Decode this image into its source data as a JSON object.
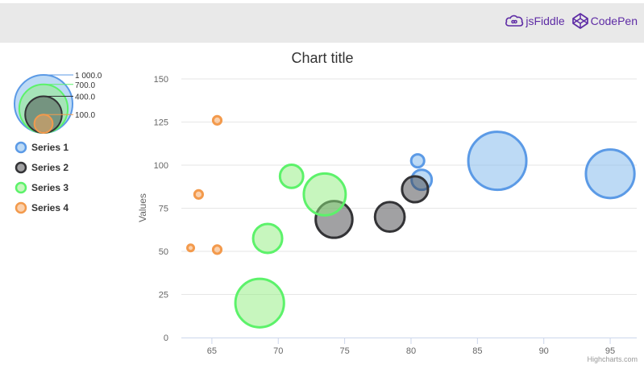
{
  "header": {
    "links": [
      {
        "label": "jsFiddle",
        "icon": "jsfiddle-cloud-icon"
      },
      {
        "label": "CodePen",
        "icon": "codepen-cube-icon"
      }
    ]
  },
  "chart_data": {
    "type": "bubble",
    "title": "Chart title",
    "ylabel": "Values",
    "xlabel": "",
    "credits": "Highcharts.com",
    "xlim": [
      62.7,
      97
    ],
    "ylim": [
      0,
      150
    ],
    "xticks": [
      "65",
      "70",
      "75",
      "80",
      "85",
      "90",
      "95"
    ],
    "xtick_values": [
      65,
      70,
      75,
      80,
      85,
      90,
      95
    ],
    "yticks": [
      "0",
      "25",
      "50",
      "75",
      "100",
      "125",
      "150"
    ],
    "ytick_values": [
      0,
      25,
      50,
      75,
      100,
      125,
      150
    ],
    "grid": true,
    "legend_position": "left",
    "bubble_legend": {
      "labels": [
        "1 000.0",
        "700.0",
        "400.0",
        "100.0"
      ],
      "values": [
        1000,
        700,
        400,
        100
      ]
    },
    "series": [
      {
        "name": "Series 1",
        "color": "#7cb5ec",
        "stroke": "#5b9ae6",
        "points": [
          {
            "x": 80.5,
            "y": 102.5,
            "z": 50
          },
          {
            "x": 80.8,
            "y": 91.5,
            "z": 120
          },
          {
            "x": 86.5,
            "y": 102.5,
            "z": 1000
          },
          {
            "x": 95.0,
            "y": 95.0,
            "z": 700
          }
        ]
      },
      {
        "name": "Series 2",
        "color": "#434348",
        "stroke": "#333336",
        "points": [
          {
            "x": 74.2,
            "y": 68.5,
            "z": 400
          },
          {
            "x": 78.4,
            "y": 70.0,
            "z": 260
          },
          {
            "x": 80.3,
            "y": 86.0,
            "z": 200
          }
        ]
      },
      {
        "name": "Series 3",
        "color": "#90ed7d",
        "stroke": "#5cf26a",
        "points": [
          {
            "x": 68.6,
            "y": 20.0,
            "z": 700
          },
          {
            "x": 69.2,
            "y": 57.5,
            "z": 250
          },
          {
            "x": 71.0,
            "y": 93.5,
            "z": 160
          },
          {
            "x": 73.5,
            "y": 83.0,
            "z": 520
          }
        ]
      },
      {
        "name": "Series 4",
        "color": "#f7a35c",
        "stroke": "#f39a4c",
        "points": [
          {
            "x": 63.4,
            "y": 52.0,
            "z": 12
          },
          {
            "x": 64.0,
            "y": 83.0,
            "z": 20
          },
          {
            "x": 65.4,
            "y": 51.0,
            "z": 20
          },
          {
            "x": 65.4,
            "y": 126.0,
            "z": 20
          }
        ]
      }
    ]
  }
}
